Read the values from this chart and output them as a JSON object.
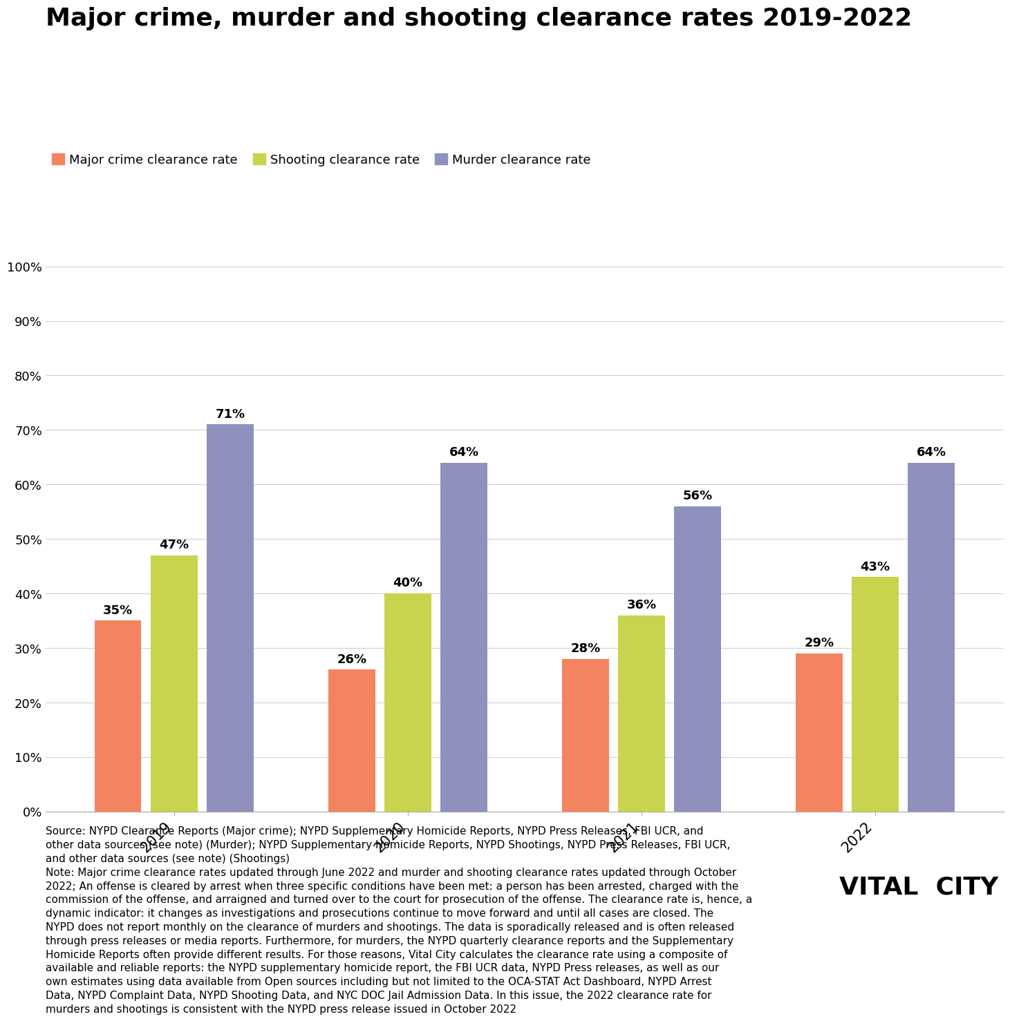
{
  "title": "Major crime, murder and shooting clearance rates 2019-2022",
  "years": [
    "2019",
    "2020",
    "2021",
    "2022"
  ],
  "major_crime": [
    0.35,
    0.26,
    0.28,
    0.29
  ],
  "shooting": [
    0.47,
    0.4,
    0.36,
    0.43
  ],
  "murder": [
    0.71,
    0.64,
    0.56,
    0.64
  ],
  "major_crime_labels": [
    "35%",
    "26%",
    "28%",
    "29%"
  ],
  "shooting_labels": [
    "47%",
    "40%",
    "36%",
    "43%"
  ],
  "murder_labels": [
    "71%",
    "64%",
    "56%",
    "64%"
  ],
  "color_major": "#F4845F",
  "color_shooting": "#C8D44E",
  "color_murder": "#9090BE",
  "legend_labels": [
    "Major crime clearance rate",
    "Shooting clearance rate",
    "Murder clearance rate"
  ],
  "ytick_labels": [
    "0%",
    "10%",
    "20%",
    "30%",
    "40%",
    "50%",
    "60%",
    "70%",
    "80%",
    "90%",
    "100%"
  ],
  "ytick_values": [
    0.0,
    0.1,
    0.2,
    0.3,
    0.4,
    0.5,
    0.6,
    0.7,
    0.8,
    0.9,
    1.0
  ],
  "source_text": "Source: NYPD Clearance Reports (Major crime); NYPD Supplementary Homicide Reports, NYPD Press Releases, FBI UCR, and\nother data sources (see note) (Murder); NYPD Supplementary Homicide Reports, NYPD Shootings, NYPD Press Releases, FBI UCR,\nand other data sources (see note) (Shootings)\nNote: Major crime clearance rates updated through June 2022 and murder and shooting clearance rates updated through October\n2022; An offense is cleared by arrest when three specific conditions have been met: a person has been arrested, charged with the\ncommission of the offense, and arraigned and turned over to the court for prosecution of the offense. The clearance rate is, hence, a\ndynamic indicator: it changes as investigations and prosecutions continue to move forward and until all cases are closed. The\nNYPD does not report monthly on the clearance of murders and shootings. The data is sporadically released and is often released\nthrough press releases or media reports. Furthermore, for murders, the NYPD quarterly clearance reports and the Supplementary\nHomicide Reports often provide different results. For those reasons, Vital City calculates the clearance rate using a composite of\navailable and reliable reports: the NYPD supplementary homicide report, the FBI UCR data, NYPD Press releases, as well as our\nown estimates using data available from Open sources including but not limited to the OCA-STAT Act Dashboard, NYPD Arrest\nData, NYPD Complaint Data, NYPD Shooting Data, and NYC DOC Jail Admission Data. In this issue, the 2022 clearance rate for\nmurders and shootings is consistent with the NYPD press release issued in October 2022",
  "watermark": "VITAL  CITY",
  "bar_width": 0.2,
  "title_fontsize": 26,
  "label_fontsize": 13,
  "tick_fontsize": 13,
  "legend_fontsize": 13,
  "source_fontsize": 11,
  "watermark_fontsize": 26
}
